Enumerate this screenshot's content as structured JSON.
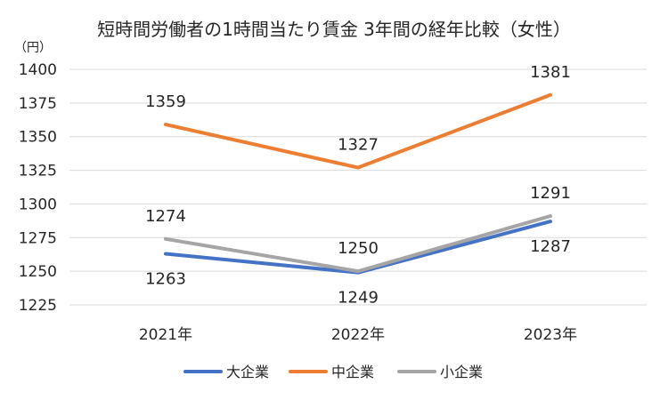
{
  "chart_data": {
    "type": "line",
    "title": "短時間労働者の1時間当たり賃金 3年間の経年比較（女性）",
    "unit_label": "（円）",
    "categories": [
      "2021年",
      "2022年",
      "2023年"
    ],
    "ylim": [
      1225,
      1400
    ],
    "yticks": [
      1225,
      1250,
      1275,
      1300,
      1325,
      1350,
      1375,
      1400
    ],
    "grid": true,
    "legend_position": "bottom",
    "series": [
      {
        "name": "大企業",
        "values": [
          1263,
          1249,
          1287
        ],
        "color": "#4472C4"
      },
      {
        "name": "中企業",
        "values": [
          1359,
          1327,
          1381
        ],
        "color": "#ED7D31"
      },
      {
        "name": "小企業",
        "values": [
          1274,
          1250,
          1291
        ],
        "color": "#A5A5A5"
      }
    ]
  }
}
